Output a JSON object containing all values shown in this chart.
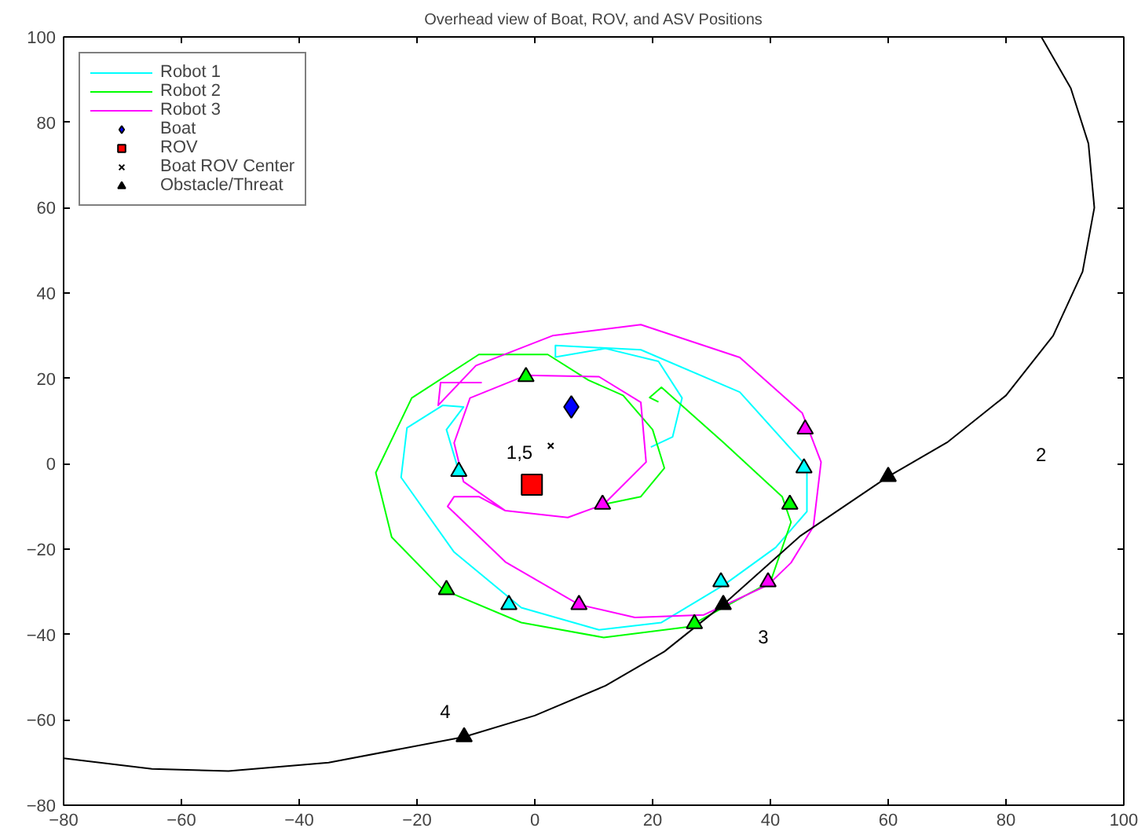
{
  "chart_data": {
    "type": "line",
    "title": "Overhead view of Boat, ROV, and ASV Positions",
    "xlim": [
      -80,
      100
    ],
    "ylim": [
      -80,
      100
    ],
    "xticks": [
      -80,
      -60,
      -40,
      -20,
      0,
      20,
      40,
      60,
      80,
      100
    ],
    "yticks": [
      -80,
      -60,
      -40,
      -20,
      0,
      20,
      40,
      60,
      80,
      100
    ],
    "grid": false,
    "legend": "top left",
    "series": [
      {
        "name": "Robot 1",
        "color": "#00ffff",
        "x": [
          -12.9,
          -15,
          -12.1,
          -15.6,
          -21.7,
          -22.7,
          -13.7,
          -2.3,
          10.9,
          21.5,
          32.1,
          40.9,
          46.2,
          46.2,
          34.8,
          18,
          3.5,
          3.5,
          12,
          21,
          25,
          23.4,
          19.7
        ],
        "values": [
          -1.8,
          8,
          13.3,
          13.7,
          8.4,
          -3.2,
          -20.7,
          -33.7,
          -38.9,
          -37.2,
          -28.4,
          -19.6,
          -11.2,
          -0.7,
          16.8,
          26.7,
          27.7,
          25,
          27,
          24,
          15.4,
          6.3,
          3.9
        ]
      },
      {
        "name": "Robot 2",
        "color": "#00ff00",
        "x": [
          11.7,
          18,
          22,
          20,
          15,
          9.1,
          2.2,
          -9.5,
          -20.9,
          -27,
          -24.3,
          -15.6,
          -2.3,
          11.7,
          26,
          40,
          43.5,
          42,
          32.1,
          21.5,
          19.5,
          21
        ],
        "values": [
          -9.5,
          -7.7,
          -1,
          8,
          16,
          19.6,
          25.6,
          25.6,
          15.4,
          -2.1,
          -17.2,
          -29.5,
          -37.2,
          -40.7,
          -38.2,
          -27.7,
          -13.7,
          -7.7,
          4.9,
          17.9,
          15.5,
          14.5
        ]
      },
      {
        "name": "Robot 3",
        "color": "#ff00ff",
        "x": [
          -9,
          -16,
          -16.4,
          -10,
          3,
          18,
          34.8,
          45.4,
          48.6,
          47.3,
          43.5,
          39.6,
          28.7,
          17,
          7.5,
          -5,
          -14.8,
          -13.7,
          -9.5,
          -5,
          5.6,
          11.7,
          18.9,
          18,
          10.9,
          -1.5,
          -11,
          -13.7,
          -12.1,
          -5
        ],
        "values": [
          19,
          19,
          13.7,
          23,
          30,
          32.6,
          24.9,
          11.9,
          0.4,
          -14.7,
          -23.2,
          -28.4,
          -35.4,
          -36,
          -33,
          -23,
          -10,
          -7.7,
          -7.7,
          -11,
          -12.6,
          -9.5,
          0.4,
          14.4,
          20.4,
          20.7,
          15.4,
          4.9,
          -4.2,
          -11
        ]
      },
      {
        "name": "Boat",
        "type": "scatter",
        "marker": "diamond",
        "color": "#0000ff",
        "x": [
          6.2
        ],
        "values": [
          13.3
        ]
      },
      {
        "name": "ROV",
        "type": "scatter",
        "marker": "square",
        "color": "#ff0000",
        "x": [
          -0.5
        ],
        "values": [
          -4.9
        ]
      },
      {
        "name": "Boat ROV Center",
        "type": "scatter",
        "marker": "cross",
        "color": "#000000",
        "x": [
          2.7
        ],
        "values": [
          4.2
        ]
      },
      {
        "name": "Obstacle/Threat",
        "type": "scatter",
        "marker": "triangle",
        "color": "#000000",
        "x": [
          60,
          32,
          -12
        ],
        "values": [
          -3,
          -33,
          -64
        ]
      },
      {
        "color": "#000000",
        "x": [
          -80,
          -65,
          -52,
          -35,
          -12,
          0,
          12,
          22,
          32,
          45,
          60,
          70,
          80,
          88,
          93,
          95,
          94,
          91,
          86
        ],
        "values": [
          -69,
          -71.5,
          -72,
          -70,
          -64,
          -59,
          -52,
          -44,
          -33,
          -17,
          -3,
          5,
          16,
          30,
          45,
          60,
          75,
          88,
          100
        ]
      },
      {
        "type": "scatter",
        "marker": "triangle",
        "color": "#00ffff",
        "x": [
          -12.9,
          45.7,
          31.6,
          -4.4
        ],
        "values": [
          -1.8,
          -1,
          -27.7,
          -33
        ]
      },
      {
        "type": "scatter",
        "marker": "triangle",
        "color": "#00ff00",
        "x": [
          -1.5,
          43.3,
          27.1,
          -15
        ],
        "values": [
          20.4,
          -9.5,
          -37.5,
          -29.5
        ]
      },
      {
        "type": "scatter",
        "marker": "triangle",
        "color": "#ff00ff",
        "x": [
          45.9,
          11.5,
          39.6,
          7.5
        ],
        "values": [
          8.1,
          -9.5,
          -27.7,
          -33
        ]
      }
    ],
    "annotations": [
      "1,5",
      "2",
      "3",
      "4"
    ]
  }
}
